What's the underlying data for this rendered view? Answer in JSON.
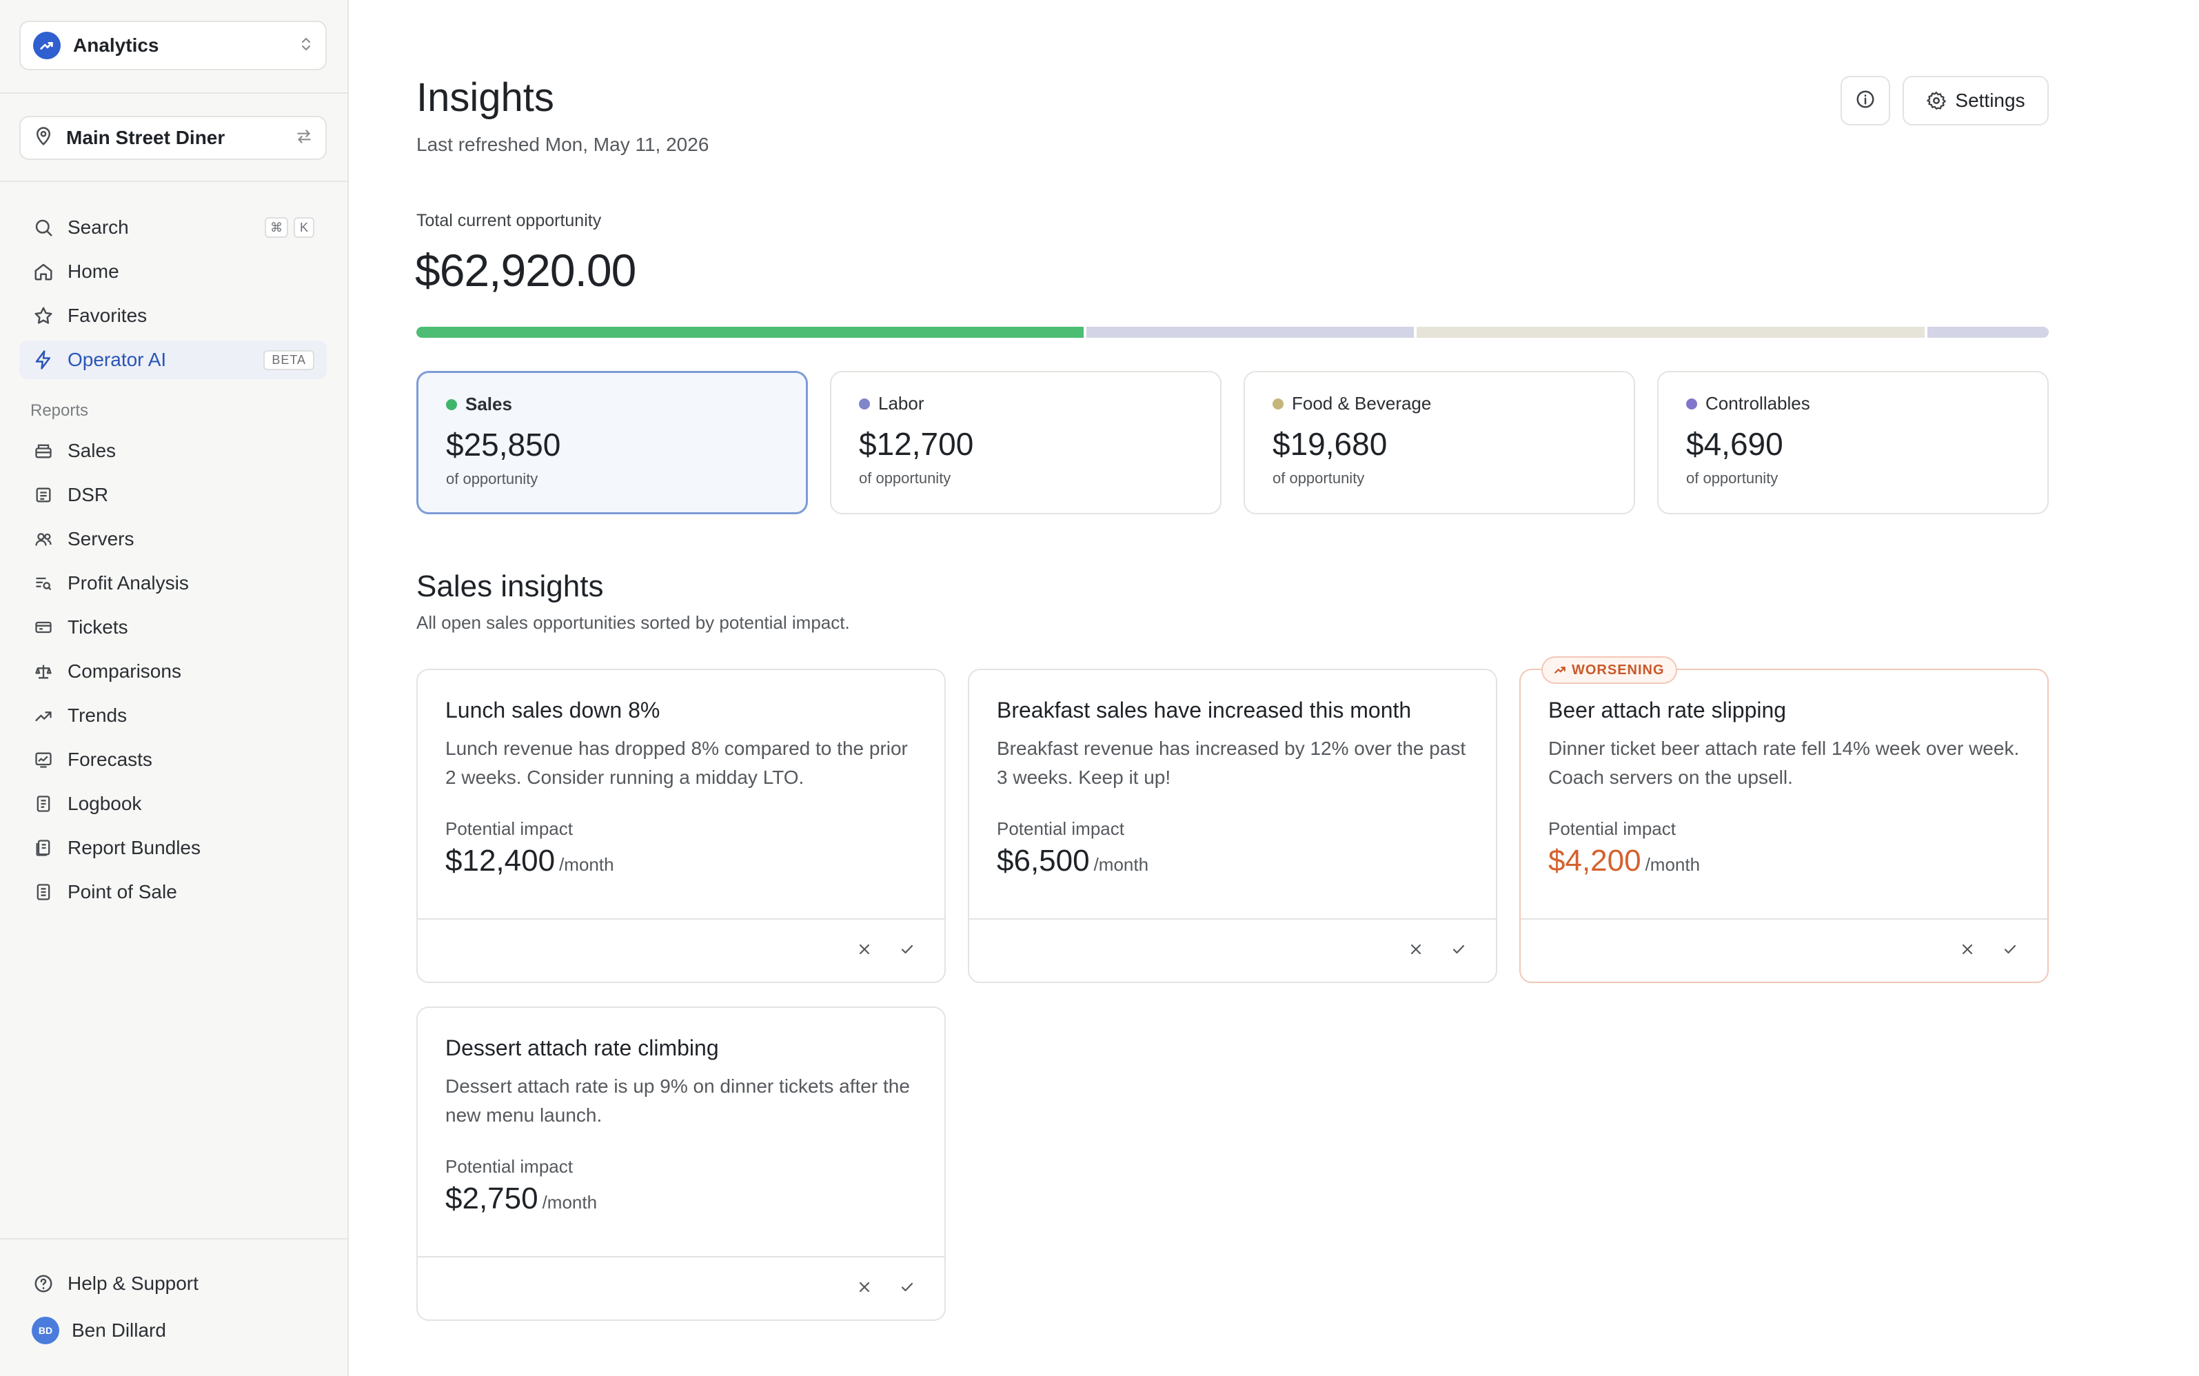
{
  "sidebar": {
    "app_name": "Analytics",
    "location": "Main Street Diner",
    "search": {
      "label": "Search",
      "shortcut": [
        "⌘",
        "K"
      ]
    },
    "nav": [
      {
        "label": "Home",
        "icon": "home-icon"
      },
      {
        "label": "Favorites",
        "icon": "star-icon"
      },
      {
        "label": "Operator AI",
        "icon": "lightning-icon",
        "badge": "BETA",
        "active": true
      }
    ],
    "reports_label": "Reports",
    "reports": [
      {
        "label": "Sales",
        "icon": "register-icon"
      },
      {
        "label": "DSR",
        "icon": "document-list-icon"
      },
      {
        "label": "Servers",
        "icon": "users-icon"
      },
      {
        "label": "Profit Analysis",
        "icon": "list-search-icon"
      },
      {
        "label": "Tickets",
        "icon": "ticket-icon"
      },
      {
        "label": "Comparisons",
        "icon": "scale-icon"
      },
      {
        "label": "Trends",
        "icon": "trend-up-icon"
      },
      {
        "label": "Forecasts",
        "icon": "forecast-icon"
      },
      {
        "label": "Logbook",
        "icon": "logbook-icon"
      },
      {
        "label": "Report Bundles",
        "icon": "bundle-icon"
      },
      {
        "label": "Point of Sale",
        "icon": "pos-icon"
      }
    ],
    "help": "Help & Support",
    "user": {
      "name": "Ben Dillard",
      "initials": "BD"
    }
  },
  "header": {
    "title": "Insights",
    "subtitle": "Last refreshed Mon, May 11, 2026",
    "settings_label": "Settings"
  },
  "opportunity": {
    "label": "Total current opportunity",
    "total": "$62,920.00",
    "segments": [
      {
        "name": "Sales",
        "value": 25850,
        "color": "#4dbd74"
      },
      {
        "name": "Labor",
        "value": 12700,
        "color": "#d3d4e6"
      },
      {
        "name": "Food & Beverage",
        "value": 19680,
        "color": "#e6e4d8"
      },
      {
        "name": "Controllables",
        "value": 4690,
        "color": "#d3d4e6"
      }
    ]
  },
  "categories": [
    {
      "name": "Sales",
      "value": "$25,850",
      "sub": "of opportunity",
      "dot": "#3fb56c",
      "selected": true
    },
    {
      "name": "Labor",
      "value": "$12,700",
      "sub": "of opportunity",
      "dot": "#7f86c9"
    },
    {
      "name": "Food & Beverage",
      "value": "$19,680",
      "sub": "of opportunity",
      "dot": "#c4b57a"
    },
    {
      "name": "Controllables",
      "value": "$4,690",
      "sub": "of opportunity",
      "dot": "#8276cc"
    }
  ],
  "insights_section": {
    "title": "Sales insights",
    "subtitle": "All open sales opportunities sorted by potential impact."
  },
  "insights": [
    {
      "title": "Lunch sales down 8%",
      "description": "Lunch revenue has dropped 8% compared to the prior 2 weeks. Consider running a midday LTO.",
      "impact_label": "Potential impact",
      "impact": "$12,400",
      "unit": "/month"
    },
    {
      "title": "Breakfast sales have increased this month",
      "description": "Breakfast revenue has increased by 12% over the past 3 weeks. Keep it up!",
      "impact_label": "Potential impact",
      "impact": "$6,500",
      "unit": "/month"
    },
    {
      "title": "Beer attach rate slipping",
      "description": "Dinner ticket beer attach rate fell 14% week over week. Coach servers on the upsell.",
      "impact_label": "Potential impact",
      "impact": "$4,200",
      "unit": "/month",
      "badge": "WORSENING"
    },
    {
      "title": "Dessert attach rate climbing",
      "description": "Dessert attach rate is up 9% on dinner tickets after the new menu launch.",
      "impact_label": "Potential impact",
      "impact": "$2,750",
      "unit": "/month"
    }
  ]
}
